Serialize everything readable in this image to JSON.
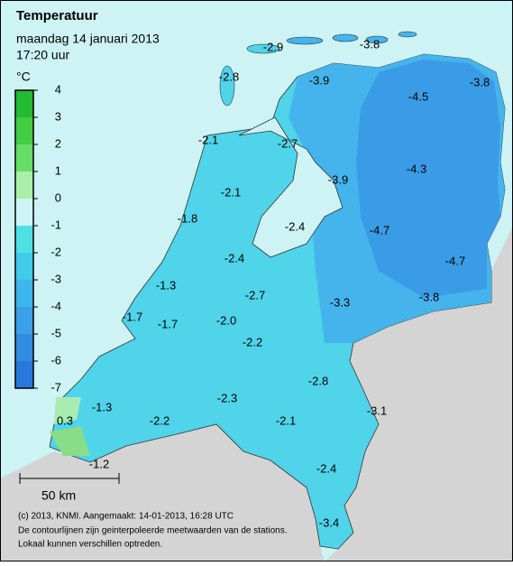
{
  "header": {
    "title": "Temperatuur",
    "date": "maandag 14 januari 2013",
    "time": "17:20 uur"
  },
  "legend": {
    "unit": "°C",
    "ticks": [
      4,
      3,
      2,
      1,
      0,
      -1,
      -2,
      -3,
      -4,
      -5,
      -6,
      -7
    ]
  },
  "stations": [
    "-2.9",
    "-3.8",
    "-2.8",
    "-3.9",
    "-3.8",
    "-4.5",
    "-2.1",
    "-2.7",
    "-4.3",
    "-3.9",
    "-2.1",
    "-1.8",
    "-2.4",
    "-4.7",
    "-4.7",
    "-2.4",
    "-1.3",
    "-2.7",
    "-3.3",
    "-3.8",
    "-1.7",
    "-1.7",
    "-2.0",
    "-2.2",
    "-2.8",
    "-2.3",
    "-1.3",
    "-3.1",
    "0.3",
    "-2.2",
    "-2.1",
    "-1.2",
    "-2.4",
    "-3.4"
  ],
  "scale": "50 km",
  "footer": [
    "(c) 2013, KNMI. Aangemaakt: 14-01-2013, 16:28 UTC",
    "De contourlijnen zijn geinterpoleerde meetwaarden van de stations.",
    "Lokaal kunnen verschillen optreden."
  ]
}
